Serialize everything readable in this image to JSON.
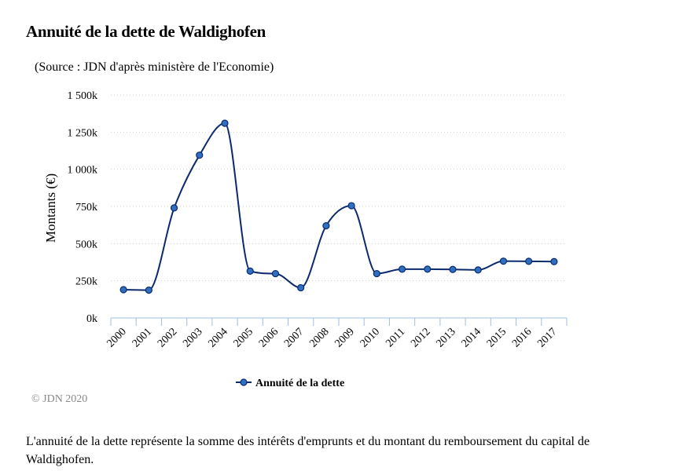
{
  "title": "Annuité de la dette de Waldighofen",
  "subtitle": "(Source : JDN d'après ministère de l'Economie)",
  "credit": "© JDN 2020",
  "description": "L'annuité de la dette représente la somme des intérêts d'emprunts et du montant du remboursement du capital de Waldighofen.",
  "colors": {
    "series": "#0b2a6e",
    "marker": "#2f6fc0",
    "grid": "#cccccc",
    "axis": "#9fbfdf"
  },
  "chart_data": {
    "type": "line",
    "title": "Annuité de la dette de Waldighofen",
    "subtitle": "(Source : JDN d'après ministère de l'Economie)",
    "xlabel": "",
    "ylabel": "Montants (€)",
    "categories": [
      "2000",
      "2001",
      "2002",
      "2003",
      "2004",
      "2005",
      "2006",
      "2007",
      "2008",
      "2009",
      "2010",
      "2011",
      "2012",
      "2013",
      "2014",
      "2015",
      "2016",
      "2017"
    ],
    "series": [
      {
        "name": "Annuité de la dette",
        "values": [
          190,
          187,
          740,
          1095,
          1310,
          315,
          298,
          203,
          620,
          755,
          298,
          328,
          328,
          326,
          323,
          382,
          381,
          379
        ]
      }
    ],
    "yticks": [
      {
        "value": 0,
        "label": "0k"
      },
      {
        "value": 250,
        "label": "250k"
      },
      {
        "value": 500,
        "label": "500k"
      },
      {
        "value": 750,
        "label": "750k"
      },
      {
        "value": 1000,
        "label": "1 000k"
      },
      {
        "value": 1250,
        "label": "1 250k"
      },
      {
        "value": 1500,
        "label": "1 500k"
      }
    ],
    "ylim": [
      0,
      1500
    ],
    "grid": true,
    "legend": "bottom-center",
    "unit": "k"
  }
}
